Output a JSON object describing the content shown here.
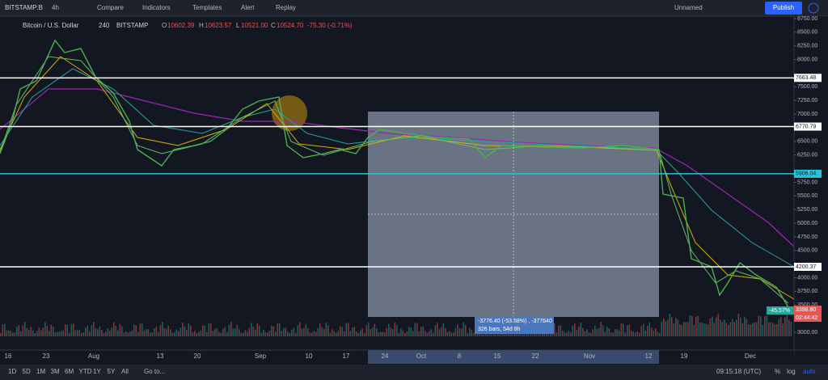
{
  "toolbar": {
    "symbol": "BITSTAMP:B",
    "interval": "4h",
    "compare": "Compare",
    "indicators": "Indicators",
    "templates": "Templates",
    "alert": "Alert",
    "replay": "Replay",
    "layout": "Unnamed",
    "publish": "Publish"
  },
  "legend": {
    "name": "Bitcoin / U.S. Dollar",
    "interval": "240",
    "exchange": "BITSTAMP",
    "open_label": "O",
    "open": "10602.39",
    "high_label": "H",
    "high": "10623.57",
    "low_label": "L",
    "low": "10521.00",
    "close_label": "C",
    "close": "10524.70",
    "change": "-75.30 (-0.71%)"
  },
  "price_axis": {
    "ylim": [
      3000,
      8750
    ],
    "yticks": [
      {
        "value": 3000,
        "label": "3000.00"
      },
      {
        "value": 3500,
        "label": "3500.00"
      },
      {
        "value": 3750,
        "label": "3750.00"
      },
      {
        "value": 4000,
        "label": "4000.00"
      },
      {
        "value": 4500,
        "label": "4500.00"
      },
      {
        "value": 4750,
        "label": "4750.00"
      },
      {
        "value": 5000,
        "label": "5000.00"
      },
      {
        "value": 5250,
        "label": "5250.00"
      },
      {
        "value": 5500,
        "label": "5500.00"
      },
      {
        "value": 5750,
        "label": "5750.00"
      },
      {
        "value": 6250,
        "label": "6250.00"
      },
      {
        "value": 6500,
        "label": "6500.00"
      },
      {
        "value": 7000,
        "label": "7000.00"
      },
      {
        "value": 7250,
        "label": "7250.00"
      },
      {
        "value": 7500,
        "label": "7500.00"
      },
      {
        "value": 8000,
        "label": "8000.00"
      },
      {
        "value": 8250,
        "label": "8250.00"
      },
      {
        "value": 8500,
        "label": "8500.00"
      },
      {
        "value": 8750,
        "label": "8750.00"
      }
    ]
  },
  "levels": [
    {
      "value": 7663.48,
      "label": "7663.48",
      "color": "#ffffff"
    },
    {
      "value": 6770.79,
      "label": "6770.79",
      "color": "#ffffff"
    },
    {
      "value": 5906.04,
      "label": "5906.04",
      "color": "#26c6da"
    },
    {
      "value": 4200.37,
      "label": "4200.37",
      "color": "#ffffff"
    }
  ],
  "time_axis": [
    "16",
    "23",
    "Aug",
    "13",
    "20",
    "Sep",
    "10",
    "17",
    "24",
    "Oct",
    "8",
    "15",
    "22",
    "Nov",
    "12",
    "19",
    "Dec"
  ],
  "measure": {
    "line1": "-3776.40 (-53.58%) , -377640",
    "line2": "326 bars, 54d 8h"
  },
  "last_price": {
    "percent": "-45.57%",
    "price": "3398.80",
    "countdown": "02:44:42"
  },
  "bottom_bar": {
    "ranges": [
      "1D",
      "5D",
      "1M",
      "3M",
      "6M",
      "YTD",
      "1Y",
      "5Y",
      "All"
    ],
    "goto": "Go to...",
    "time": "09:15:18 (UTC)",
    "percent": "%",
    "log": "log",
    "auto": "auto"
  }
}
